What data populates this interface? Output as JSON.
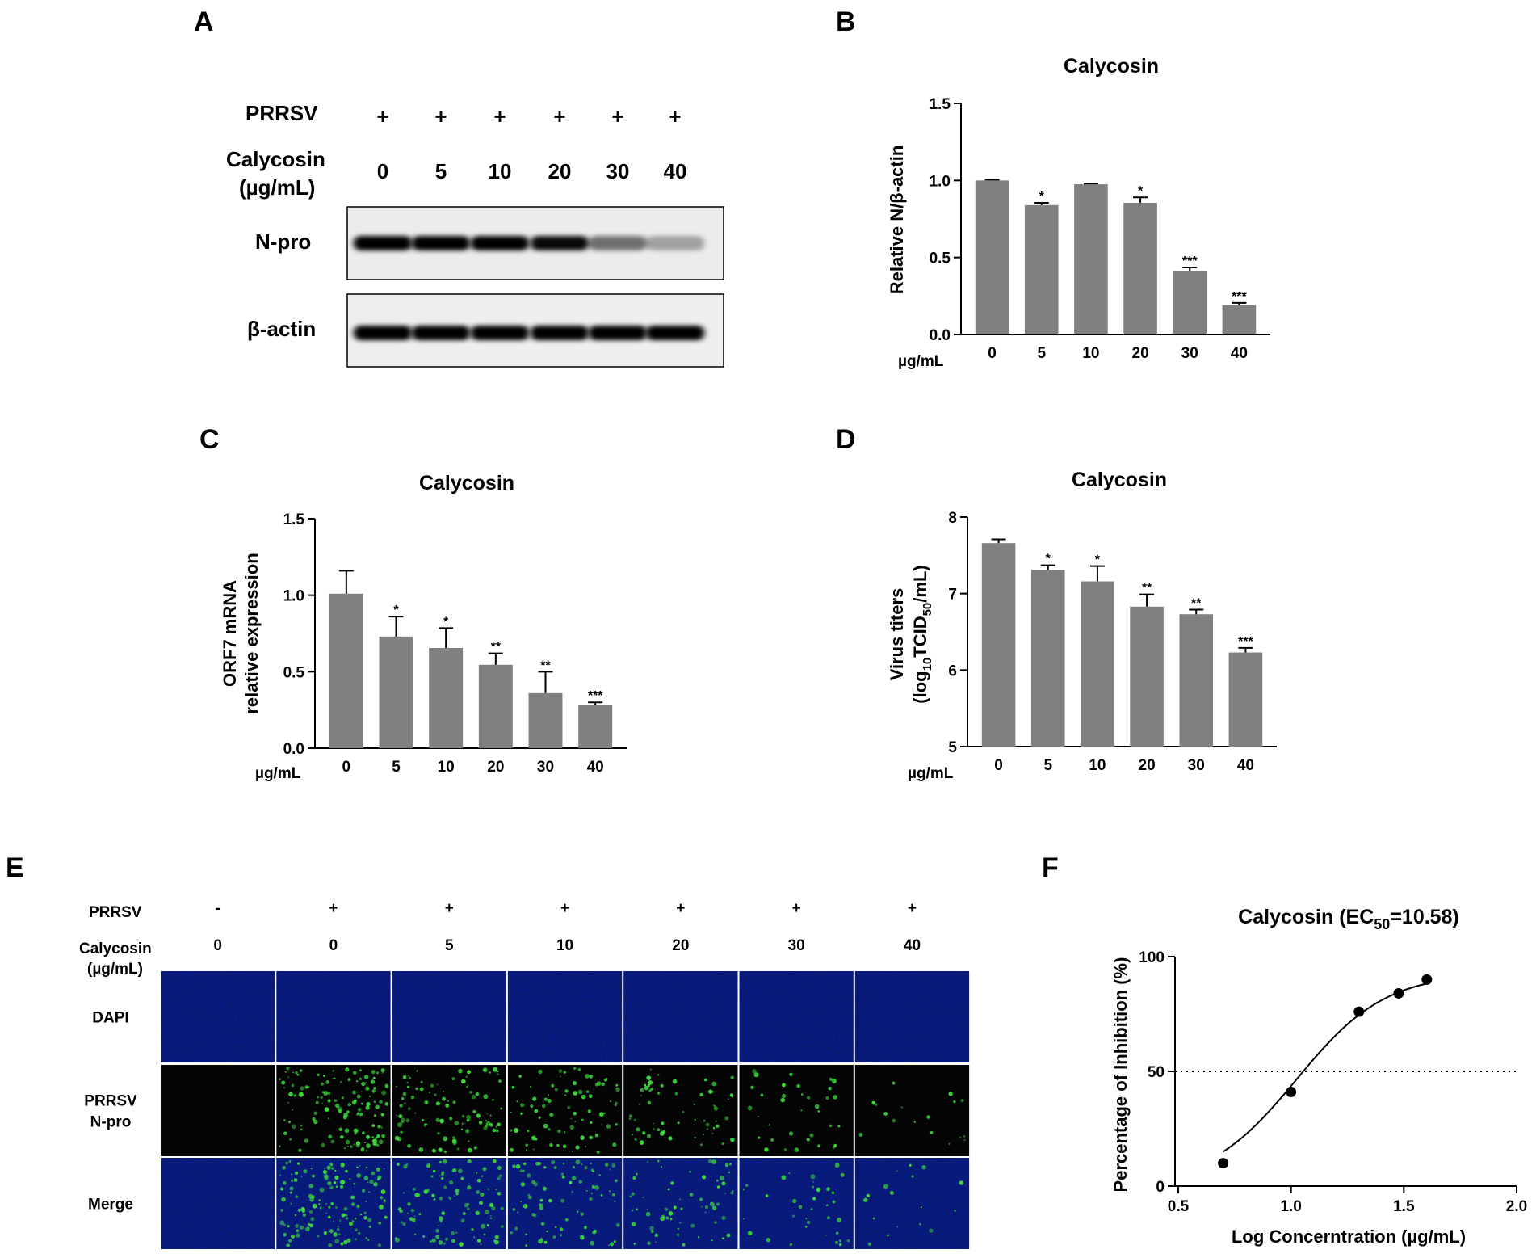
{
  "panels": {
    "A": {
      "letter": "A",
      "row_virus": {
        "label": "PRRSV",
        "signs": [
          "+",
          "+",
          "+",
          "+",
          "+",
          "+"
        ]
      },
      "row_drug": {
        "label_line1": "Calycosin",
        "label_line2": "(µg/mL)",
        "doses": [
          "0",
          "5",
          "10",
          "20",
          "30",
          "40"
        ]
      },
      "blot_npro": {
        "label": "N-pro",
        "intensity": [
          1.0,
          1.0,
          1.0,
          0.95,
          0.45,
          0.2
        ]
      },
      "blot_actin": {
        "label": "β-actin",
        "intensity": [
          1.0,
          1.0,
          1.0,
          1.0,
          1.0,
          1.0
        ]
      }
    },
    "E": {
      "letter": "E",
      "row_virus": {
        "label": "PRRSV",
        "signs": [
          "-",
          "+",
          "+",
          "+",
          "+",
          "+",
          "+"
        ]
      },
      "row_drug": {
        "label_line1": "Calycosin",
        "label_line2": "(µg/mL)",
        "doses": [
          "0",
          "0",
          "5",
          "10",
          "20",
          "30",
          "40"
        ]
      },
      "rows": [
        {
          "label_line1": "DAPI",
          "label_line2": ""
        },
        {
          "label_line1": "PRRSV",
          "label_line2": "N-pro"
        },
        {
          "label_line1": "Merge",
          "label_line2": ""
        }
      ],
      "green_density": [
        0,
        1.0,
        0.75,
        0.6,
        0.45,
        0.25,
        0.12
      ],
      "colors": {
        "dapi": "#0a1f8f",
        "green": "#3cdc3c",
        "black": "#050505"
      }
    }
  },
  "chart_data": [
    {
      "id": "B",
      "letter": "B",
      "type": "bar",
      "title": "Calycosin",
      "xlabel": "µg/mL",
      "ylabel": "Relative N/β-actin",
      "categories": [
        "0",
        "5",
        "10",
        "20",
        "30",
        "40"
      ],
      "values": [
        1.0,
        0.84,
        0.975,
        0.855,
        0.41,
        0.19
      ],
      "errors": [
        0.005,
        0.015,
        0.005,
        0.035,
        0.025,
        0.015
      ],
      "significance": [
        "",
        "*",
        "",
        "*",
        "***",
        "***"
      ],
      "ylim": [
        0,
        1.5
      ],
      "yticks": [
        "0.0",
        "0.5",
        "1.0",
        "1.5"
      ],
      "bar_color": "#808080"
    },
    {
      "id": "C",
      "letter": "C",
      "type": "bar",
      "title": "Calycosin",
      "xlabel": "µg/mL",
      "ylabel": "ORF7 mRNA",
      "ylabel2": "relative expression",
      "categories": [
        "0",
        "5",
        "10",
        "20",
        "30",
        "40"
      ],
      "values": [
        1.01,
        0.73,
        0.655,
        0.545,
        0.36,
        0.285
      ],
      "errors": [
        0.15,
        0.13,
        0.13,
        0.075,
        0.14,
        0.015
      ],
      "significance": [
        "",
        "*",
        "*",
        "**",
        "**",
        "***"
      ],
      "ylim": [
        0,
        1.5
      ],
      "yticks": [
        "0.0",
        "0.5",
        "1.0",
        "1.5"
      ],
      "bar_color": "#808080"
    },
    {
      "id": "D",
      "letter": "D",
      "type": "bar",
      "title": "Calycosin",
      "xlabel": "µg/mL",
      "ylabel": "Virus titers",
      "ylabel2_parts": [
        "(log",
        "10",
        "TCID",
        "50",
        "/mL)"
      ],
      "categories": [
        "0",
        "5",
        "10",
        "20",
        "30",
        "40"
      ],
      "values": [
        7.66,
        7.31,
        7.16,
        6.83,
        6.73,
        6.23
      ],
      "errors": [
        0.05,
        0.06,
        0.2,
        0.16,
        0.06,
        0.06
      ],
      "significance": [
        "",
        "*",
        "*",
        "**",
        "**",
        "***"
      ],
      "ylim": [
        5,
        8
      ],
      "yticks": [
        "5",
        "6",
        "7",
        "8"
      ],
      "bar_color": "#808080"
    },
    {
      "id": "F",
      "letter": "F",
      "type": "scatter",
      "title_main": "Calycosin (EC",
      "title_sub": "50",
      "title_end": "=10.58)",
      "xlabel": "Log Concerntration (µg/mL)",
      "ylabel": "Percentage of Inhibition (%)",
      "x": [
        0.699,
        1.0,
        1.301,
        1.477,
        1.602
      ],
      "y": [
        10,
        41,
        76,
        84,
        90
      ],
      "xlim": [
        0.5,
        2.0
      ],
      "ylim": [
        0,
        100
      ],
      "xticks": [
        "0.5",
        "1.0",
        "1.5",
        "2.0"
      ],
      "yticks": [
        "0",
        "50",
        "100"
      ],
      "reference_line_y": 50,
      "fit": {
        "log_ec50": 1.0245,
        "hill": 2.2,
        "top": 93,
        "bottom": 0
      }
    }
  ]
}
